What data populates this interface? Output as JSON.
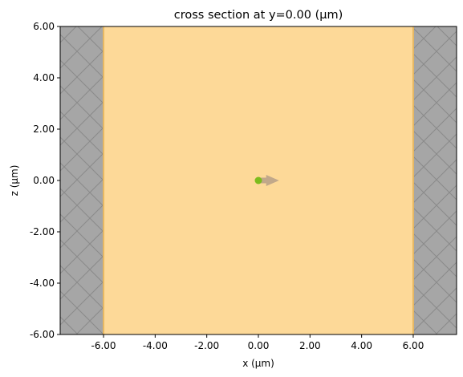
{
  "chart_data": {
    "type": "heatmap",
    "title": "cross section at y=0.00 (μm)",
    "xlabel": "x (μm)",
    "ylabel": "z (μm)",
    "xlim": [
      -7.68,
      7.68
    ],
    "ylim": [
      -6.0,
      6.0
    ],
    "x_ticks": [
      "-6.00",
      "-4.00",
      "-2.00",
      "0.00",
      "2.00",
      "4.00",
      "6.00"
    ],
    "y_ticks": [
      "-6.00",
      "-4.00",
      "-2.00",
      "0.00",
      "2.00",
      "4.00",
      "6.00"
    ],
    "grid": false,
    "regions": [
      {
        "kind": "pml",
        "x_range": [
          -7.68,
          -6.0
        ],
        "z_range": [
          -6.0,
          6.0
        ],
        "color": "#a6a6a6",
        "hatch": "crosshatch"
      },
      {
        "kind": "pml",
        "x_range": [
          6.0,
          7.68
        ],
        "z_range": [
          -6.0,
          6.0
        ],
        "color": "#a6a6a6",
        "hatch": "crosshatch"
      },
      {
        "kind": "medium",
        "x_range": [
          -6.0,
          6.0
        ],
        "z_range": [
          -6.0,
          6.0
        ],
        "color": "#fdd998"
      }
    ],
    "source": {
      "x": 0.0,
      "z": 0.0,
      "color": "#7cbc1d",
      "direction": "+x",
      "arrow_length": 0.8,
      "arrow_color": "#c1a88a"
    }
  }
}
